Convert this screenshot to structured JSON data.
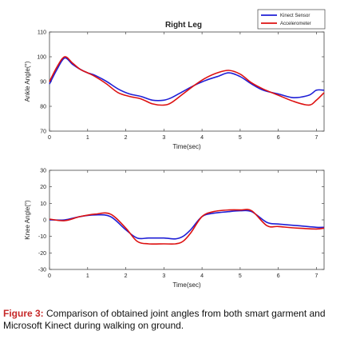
{
  "chart_data": [
    {
      "type": "line",
      "title": "Right Leg",
      "xlabel": "Time(sec)",
      "ylabel": "Ankle Angle(°)",
      "xlim": [
        0,
        7.2
      ],
      "ylim": [
        70,
        110
      ],
      "xticks": [
        "0",
        "1",
        "2",
        "3",
        "4",
        "5",
        "6",
        "7"
      ],
      "yticks": [
        "70",
        "80",
        "90",
        "100",
        "110"
      ],
      "legend_position": "top-right",
      "series": [
        {
          "name": "Kinect Sensor",
          "color": "#1f1fd6",
          "x": [
            0,
            0.2,
            0.4,
            0.6,
            0.8,
            1.0,
            1.2,
            1.5,
            1.8,
            2.1,
            2.4,
            2.7,
            3.0,
            3.2,
            3.5,
            3.8,
            4.1,
            4.4,
            4.7,
            5.0,
            5.3,
            5.6,
            6.0,
            6.4,
            6.8,
            7.0,
            7.2
          ],
          "y": [
            89,
            95,
            99.5,
            97,
            95,
            93.5,
            92.5,
            90,
            87,
            85,
            84,
            82.5,
            82.5,
            83.5,
            86,
            88.5,
            90.5,
            92,
            93.5,
            92,
            89,
            86.5,
            85,
            83.5,
            84.5,
            86.5,
            86.5
          ]
        },
        {
          "name": "Accelerometer",
          "color": "#dd1111",
          "x": [
            0,
            0.2,
            0.4,
            0.6,
            0.8,
            1.0,
            1.2,
            1.5,
            1.8,
            2.1,
            2.4,
            2.7,
            3.0,
            3.2,
            3.5,
            3.8,
            4.1,
            4.4,
            4.7,
            5.0,
            5.3,
            5.6,
            6.0,
            6.4,
            6.8,
            7.0,
            7.2
          ],
          "y": [
            90,
            96,
            100,
            97.5,
            95,
            93.5,
            92,
            89,
            85.5,
            84,
            83,
            81,
            80.5,
            81.5,
            85,
            88.5,
            91.5,
            93.5,
            94.5,
            93,
            89.5,
            87,
            84.5,
            82,
            80.5,
            82.5,
            85.5
          ]
        }
      ]
    },
    {
      "type": "line",
      "xlabel": "Time(sec)",
      "ylabel": "Knee Angle(°)",
      "xlim": [
        0,
        7.2
      ],
      "ylim": [
        -30,
        30
      ],
      "xticks": [
        "0",
        "1",
        "2",
        "3",
        "4",
        "5",
        "6",
        "7"
      ],
      "yticks": [
        "-30",
        "-20",
        "-10",
        "0",
        "10",
        "20",
        "30"
      ],
      "series": [
        {
          "name": "Kinect Sensor",
          "color": "#1f1fd6",
          "x": [
            0,
            0.4,
            0.8,
            1.2,
            1.6,
            2.0,
            2.3,
            2.6,
            3.0,
            3.3,
            3.5,
            3.7,
            4.0,
            4.3,
            4.7,
            5.0,
            5.3,
            5.7,
            6.0,
            6.5,
            7.0,
            7.2
          ],
          "y": [
            0,
            0,
            2,
            3,
            2,
            -6,
            -11,
            -11,
            -11,
            -11.5,
            -10,
            -6,
            2,
            4,
            5,
            5.5,
            5,
            -1.5,
            -2.5,
            -3.5,
            -4.5,
            -4.5
          ]
        },
        {
          "name": "Accelerometer",
          "color": "#dd1111",
          "x": [
            0,
            0.4,
            0.8,
            1.2,
            1.6,
            2.0,
            2.3,
            2.6,
            3.0,
            3.3,
            3.5,
            3.7,
            4.0,
            4.3,
            4.7,
            5.0,
            5.3,
            5.7,
            6.0,
            6.5,
            7.0,
            7.2
          ],
          "y": [
            0.5,
            -0.5,
            2,
            3.5,
            3.5,
            -5,
            -13,
            -14.5,
            -14.5,
            -14.5,
            -13,
            -8,
            2,
            5,
            6,
            6,
            5.5,
            -3.5,
            -4,
            -5,
            -5.5,
            -5
          ]
        }
      ]
    }
  ],
  "caption": {
    "label": "Figure 3:",
    "text": " Comparison of obtained joint angles from both smart garment and Microsoft Kinect during walking on ground."
  }
}
